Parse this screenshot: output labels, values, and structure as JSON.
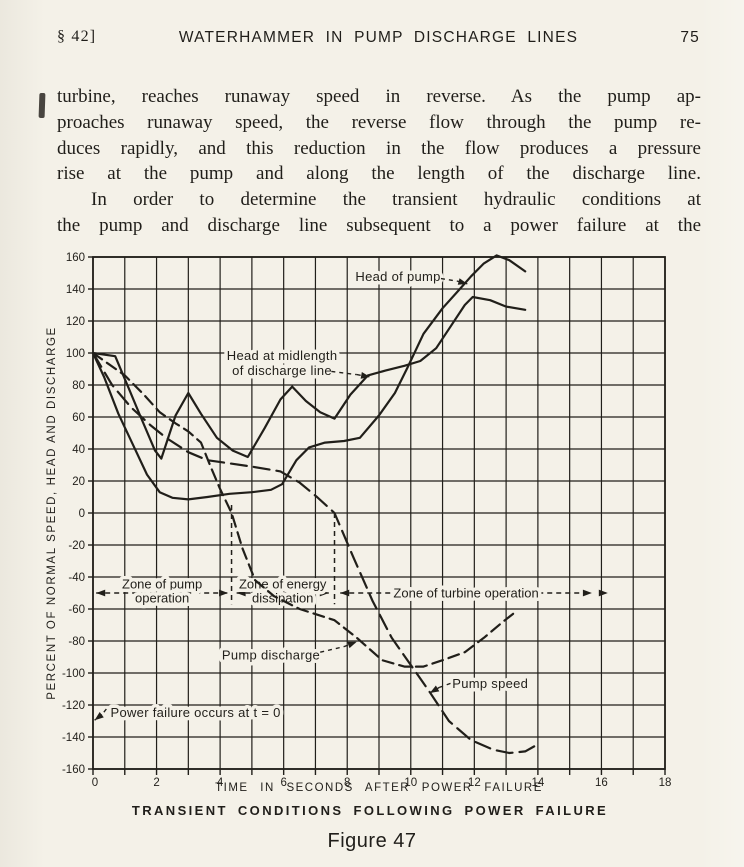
{
  "page": {
    "header": {
      "section_marker": "§ 42]",
      "running_title": "WATERHAMMER IN PUMP DISCHARGE LINES",
      "page_number": "75"
    },
    "body_lines": [
      "turbine, reaches runaway speed in reverse.  As the pump ap-",
      "proaches runaway speed, the reverse flow through the pump re-",
      "duces rapidly, and this reduction in the flow produces a pressure",
      "rise at the pump and along the length of the discharge line.",
      "In order to determine the transient hydraulic conditions at",
      "the pump and discharge line subsequent to a power failure at the"
    ],
    "figure_number": "Figure 47"
  },
  "chart_data": {
    "type": "line",
    "title": "TRANSIENT CONDITIONS FOLLOWING POWER FAILURE",
    "xlabel": "TIME IN SECONDS AFTER POWER FAILURE",
    "ylabel": "PERCENT OF NORMAL SPEED, HEAD AND DISCHARGE",
    "xlim": [
      0,
      18
    ],
    "ylim": [
      -160,
      160
    ],
    "x_grid_step": 1,
    "y_grid_step": 20,
    "x_tick_labels": [
      0,
      2,
      4,
      6,
      8,
      10,
      12,
      14,
      16,
      18
    ],
    "grid": true,
    "legend_position": "none",
    "ink_color": "#211f1a",
    "paper_color": "#f4f1e8",
    "series": [
      {
        "name": "Head of pump",
        "line": "solid",
        "points": [
          [
            0,
            100
          ],
          [
            0.35,
            85
          ],
          [
            0.8,
            62
          ],
          [
            1.25,
            43
          ],
          [
            1.7,
            24
          ],
          [
            2.1,
            13
          ],
          [
            2.5,
            9.5
          ],
          [
            3.0,
            8.5
          ],
          [
            3.6,
            10
          ],
          [
            4.3,
            12
          ],
          [
            5.0,
            13
          ],
          [
            5.6,
            14.5
          ],
          [
            5.95,
            18
          ],
          [
            6.4,
            33
          ],
          [
            6.8,
            41
          ],
          [
            7.3,
            44
          ],
          [
            7.9,
            45
          ],
          [
            8.4,
            47
          ],
          [
            9.0,
            61
          ],
          [
            9.5,
            75
          ],
          [
            9.9,
            91
          ],
          [
            10.4,
            112
          ],
          [
            11.0,
            128
          ],
          [
            11.5,
            139
          ],
          [
            11.9,
            148
          ],
          [
            12.3,
            156
          ],
          [
            12.7,
            161
          ],
          [
            13.1,
            158
          ],
          [
            13.6,
            151
          ]
        ]
      },
      {
        "name": "Head at midlength of discharge line",
        "line": "solid",
        "points": [
          [
            0,
            100
          ],
          [
            0.7,
            98
          ],
          [
            1.1,
            79
          ],
          [
            1.5,
            60
          ],
          [
            1.95,
            39
          ],
          [
            2.15,
            34
          ],
          [
            2.6,
            61
          ],
          [
            3.0,
            75
          ],
          [
            3.4,
            62
          ],
          [
            3.9,
            47
          ],
          [
            4.4,
            39
          ],
          [
            4.87,
            35
          ],
          [
            5.4,
            53
          ],
          [
            5.9,
            71
          ],
          [
            6.27,
            79
          ],
          [
            6.7,
            70
          ],
          [
            7.15,
            63
          ],
          [
            7.6,
            59
          ],
          [
            8.1,
            74
          ],
          [
            8.65,
            86
          ],
          [
            9.2,
            89
          ],
          [
            9.8,
            92
          ],
          [
            10.3,
            95
          ],
          [
            10.8,
            103
          ],
          [
            11.3,
            118
          ],
          [
            11.7,
            130
          ],
          [
            11.95,
            135
          ],
          [
            12.5,
            133
          ],
          [
            13.0,
            129
          ],
          [
            13.6,
            127
          ]
        ]
      },
      {
        "name": "Pump discharge",
        "line": "dashed",
        "points": [
          [
            0,
            100
          ],
          [
            0.5,
            93
          ],
          [
            1.0,
            86
          ],
          [
            1.6,
            74
          ],
          [
            2.1,
            63
          ],
          [
            2.6,
            56
          ],
          [
            3.0,
            51
          ],
          [
            3.4,
            44
          ],
          [
            3.7,
            29
          ],
          [
            4.0,
            15
          ],
          [
            4.36,
            0
          ],
          [
            4.7,
            -22
          ],
          [
            5.1,
            -42
          ],
          [
            5.7,
            -52
          ],
          [
            6.5,
            -60
          ],
          [
            7.6,
            -67
          ],
          [
            8.3,
            -78
          ],
          [
            9.1,
            -92
          ],
          [
            9.8,
            -96
          ],
          [
            10.4,
            -96
          ],
          [
            11.0,
            -92
          ],
          [
            11.7,
            -87
          ],
          [
            12.3,
            -78
          ],
          [
            12.9,
            -68
          ],
          [
            13.35,
            -61
          ]
        ]
      },
      {
        "name": "Pump speed",
        "line": "dashed-long",
        "points": [
          [
            0,
            100
          ],
          [
            0.6,
            80
          ],
          [
            1.2,
            66
          ],
          [
            1.8,
            55
          ],
          [
            2.3,
            47
          ],
          [
            3.0,
            38
          ],
          [
            3.6,
            33
          ],
          [
            4.3,
            31
          ],
          [
            5.0,
            29
          ],
          [
            5.9,
            26
          ],
          [
            6.5,
            19
          ],
          [
            7.05,
            10
          ],
          [
            7.6,
            0
          ],
          [
            8.2,
            -28
          ],
          [
            8.8,
            -55
          ],
          [
            9.4,
            -78
          ],
          [
            10.0,
            -95
          ],
          [
            10.6,
            -112
          ],
          [
            11.2,
            -130
          ],
          [
            11.9,
            -142
          ],
          [
            12.6,
            -148
          ],
          [
            13.1,
            -150
          ],
          [
            13.6,
            -149
          ],
          [
            14.05,
            -144
          ]
        ]
      }
    ],
    "zone_boundaries": [
      {
        "t": 4.36,
        "v_top": 5,
        "v_bottom": -57
      },
      {
        "t": 7.6,
        "v_top": 0,
        "v_bottom": -57
      }
    ],
    "zones_axis_v": -50,
    "zones": [
      {
        "label_lines": [
          "Zone of pump",
          "operation"
        ],
        "from_t": 0.1,
        "to_t": 4.25
      },
      {
        "label_lines": [
          "Zone of energy",
          "dissipation"
        ],
        "from_t": 4.52,
        "to_t": 7.42
      },
      {
        "label_lines": [
          "Zone of turbine operation"
        ],
        "from_t": 7.78,
        "to_t": 15.7,
        "extra_arrow_t": 16.2
      }
    ],
    "annotations": [
      {
        "id": "head-of-pump",
        "lines": [
          "Head of pump"
        ],
        "anchor": "middle",
        "tx": 9.6,
        "tv": 147.5,
        "leader": [
          [
            10.95,
            146.5
          ],
          [
            11.45,
            145.0
          ]
        ],
        "tip": [
          11.78,
          143.2
        ]
      },
      {
        "id": "head-at-midlength",
        "lines": [
          "Head at midlength",
          "of discharge line"
        ],
        "anchor": "middle",
        "tx": 5.95,
        "tv": 98,
        "leader": [
          [
            7.5,
            88.5
          ],
          [
            8.3,
            86.5
          ]
        ],
        "tip": [
          8.72,
          85
        ]
      },
      {
        "id": "pump-discharge",
        "lines": [
          "Pump discharge"
        ],
        "anchor": "middle",
        "tx": 5.6,
        "tv": -89,
        "leader": [
          [
            7.15,
            -87
          ],
          [
            7.9,
            -83.5
          ]
        ],
        "tip": [
          8.3,
          -80.5
        ]
      },
      {
        "id": "pump-speed",
        "lines": [
          "Pump speed"
        ],
        "anchor": "middle",
        "tx": 12.5,
        "tv": -107,
        "leader": [
          [
            11.25,
            -106.5
          ],
          [
            10.9,
            -109
          ]
        ],
        "tip": [
          10.6,
          -112.5
        ]
      },
      {
        "id": "power-failure",
        "lines": [
          "Power failure occurs at t = 0"
        ],
        "anchor": "start",
        "tx": 0.55,
        "tv": -125,
        "leader": [
          [
            0.42,
            -122.5
          ],
          [
            0.28,
            -126
          ]
        ],
        "tip": [
          0.05,
          -129.5
        ]
      }
    ]
  }
}
